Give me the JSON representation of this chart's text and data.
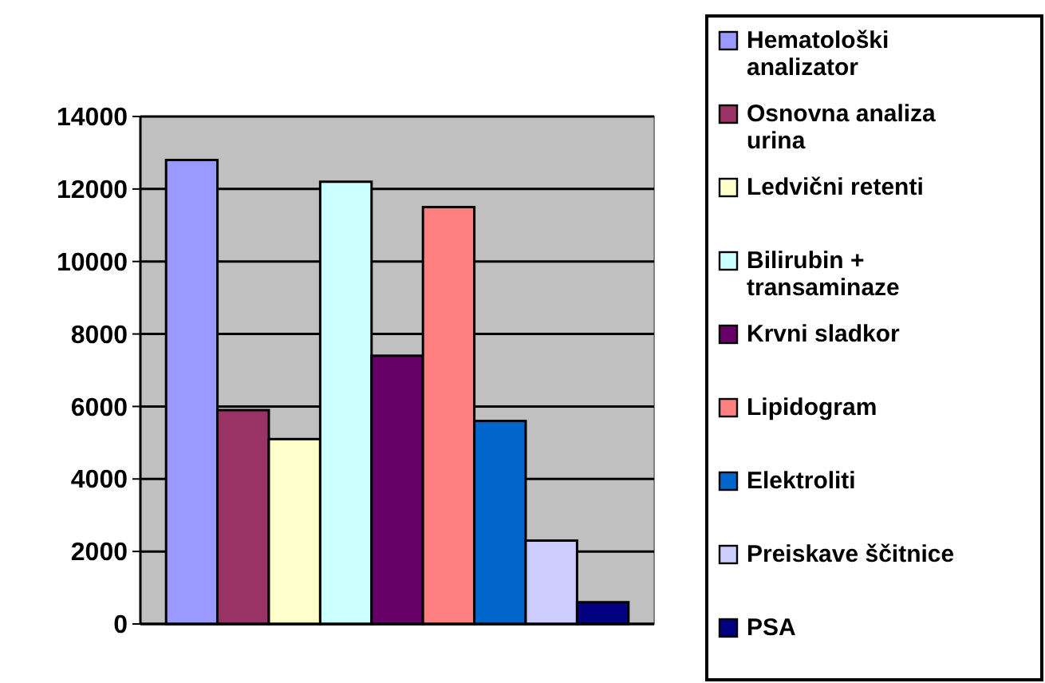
{
  "chart_data": {
    "type": "bar",
    "categories": [
      null
    ],
    "series": [
      {
        "name": "Hematološki analizator",
        "color": "#9999ff",
        "values": [
          12800
        ]
      },
      {
        "name": "Osnovna analiza urina",
        "color": "#993366",
        "values": [
          5900
        ]
      },
      {
        "name": "Ledvični retenti",
        "color": "#ffffcc",
        "values": [
          5100
        ]
      },
      {
        "name": "Bilirubin + transaminaze",
        "color": "#ccffff",
        "values": [
          12200
        ]
      },
      {
        "name": "Krvni sladkor",
        "color": "#660066",
        "values": [
          7400
        ]
      },
      {
        "name": "Lipidogram",
        "color": "#ff8080",
        "values": [
          11500
        ]
      },
      {
        "name": "Elektroliti",
        "color": "#0066cc",
        "values": [
          5600
        ]
      },
      {
        "name": "Preiskave ščitnice",
        "color": "#ccccff",
        "values": [
          2300
        ]
      },
      {
        "name": "PSA",
        "color": "#000080",
        "values": [
          600
        ]
      }
    ],
    "ylim": [
      0,
      14000
    ],
    "yticks": [
      0,
      2000,
      4000,
      6000,
      8000,
      10000,
      12000,
      14000
    ],
    "grid": "y",
    "legend": "right"
  }
}
